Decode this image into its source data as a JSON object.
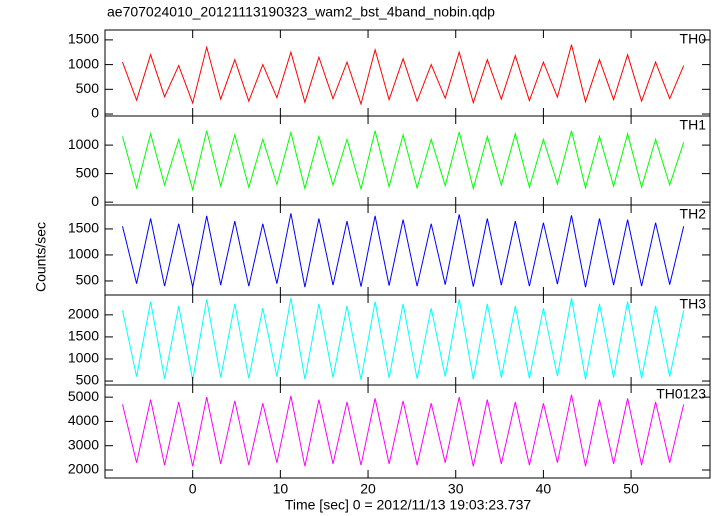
{
  "chart_data": {
    "type": "line",
    "title": "ae707024010_20121113190323_wam2_bst_4band_nobin.qdp",
    "xlabel": "Time [sec] 0 = 2012/11/13 19:03:23.737",
    "ylabel": "Counts/sec",
    "xlim": [
      -10,
      59
    ],
    "xticks": [
      0,
      10,
      20,
      30,
      40,
      50
    ],
    "x": [
      -8,
      -6.4,
      -4.8,
      -3.2,
      -1.6,
      0,
      1.6,
      3.2,
      4.8,
      6.4,
      8,
      9.6,
      11.2,
      12.8,
      14.4,
      16,
      17.6,
      19.2,
      20.8,
      22.4,
      24,
      25.6,
      27.2,
      28.8,
      30.4,
      32,
      33.6,
      35.2,
      36.8,
      38.4,
      40,
      41.6,
      43.2,
      44.8,
      46.4,
      48,
      49.6,
      51.2,
      52.8,
      54.4,
      56
    ],
    "panels": [
      {
        "name": "TH0",
        "color": "#ff0000",
        "ylim": [
          -40,
          1700
        ],
        "yticks": [
          0,
          500,
          1000,
          1500
        ],
        "values": [
          1050,
          280,
          1200,
          350,
          980,
          220,
          1350,
          300,
          1100,
          260,
          1000,
          330,
          1250,
          240,
          1150,
          310,
          1050,
          200,
          1300,
          290,
          1120,
          260,
          1000,
          320,
          1250,
          230,
          1100,
          300,
          1180,
          270,
          1050,
          340,
          1400,
          250,
          1100,
          290,
          1200,
          260,
          1050,
          310,
          980
        ]
      },
      {
        "name": "TH1",
        "color": "#00ff00",
        "ylim": [
          -50,
          1510
        ],
        "yticks": [
          0,
          500,
          1000
        ],
        "values": [
          1150,
          250,
          1200,
          300,
          1100,
          220,
          1250,
          280,
          1180,
          260,
          1100,
          310,
          1220,
          240,
          1150,
          300,
          1100,
          230,
          1250,
          270,
          1180,
          250,
          1100,
          290,
          1230,
          240,
          1150,
          300,
          1200,
          260,
          1100,
          320,
          1250,
          250,
          1150,
          280,
          1200,
          260,
          1100,
          300,
          1050
        ]
      },
      {
        "name": "TH2",
        "color": "#0000ff",
        "ylim": [
          230,
          1960
        ],
        "yticks": [
          500,
          1000,
          1500
        ],
        "values": [
          1550,
          450,
          1700,
          400,
          1600,
          380,
          1750,
          420,
          1650,
          400,
          1600,
          450,
          1800,
          380,
          1700,
          420,
          1650,
          390,
          1750,
          410,
          1680,
          400,
          1600,
          430,
          1780,
          390,
          1700,
          420,
          1650,
          400,
          1620,
          440,
          1760,
          380,
          1700,
          420,
          1680,
          400,
          1620,
          430,
          1550
        ]
      },
      {
        "name": "TH3",
        "color": "#00ffff",
        "ylim": [
          410,
          2450
        ],
        "yticks": [
          500,
          1000,
          1500,
          2000
        ],
        "values": [
          2100,
          600,
          2300,
          550,
          2200,
          520,
          2350,
          580,
          2250,
          560,
          2150,
          600,
          2380,
          540,
          2250,
          580,
          2200,
          530,
          2300,
          570,
          2250,
          550,
          2150,
          600,
          2350,
          540,
          2250,
          580,
          2200,
          560,
          2150,
          610,
          2380,
          540,
          2250,
          580,
          2300,
          560,
          2200,
          600,
          2100
        ]
      },
      {
        "name": "TH0123",
        "color": "#ff00ff",
        "ylim": [
          1670,
          5500
        ],
        "yticks": [
          2000,
          3000,
          4000,
          5000
        ],
        "values": [
          4700,
          2300,
          4900,
          2200,
          4800,
          2150,
          5000,
          2250,
          4850,
          2200,
          4750,
          2300,
          5050,
          2150,
          4900,
          2250,
          4800,
          2200,
          4950,
          2250,
          4850,
          2200,
          4750,
          2300,
          5000,
          2150,
          4900,
          2250,
          4800,
          2200,
          4750,
          2300,
          5100,
          2150,
          4900,
          2250,
          4950,
          2200,
          4800,
          2300,
          4700
        ]
      }
    ]
  }
}
